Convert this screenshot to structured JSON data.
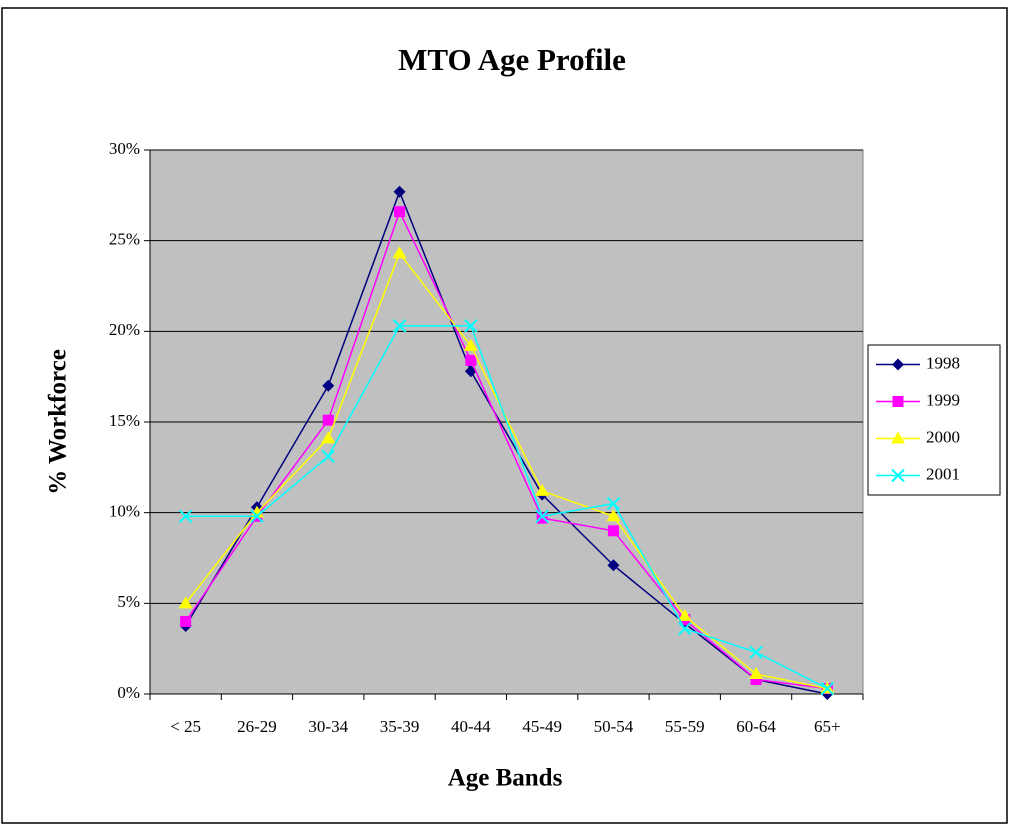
{
  "chart_data": {
    "type": "line",
    "title": "MTO Age Profile",
    "x_label": "Age Bands",
    "y_label": "% Workforce",
    "categories": [
      "< 25",
      "26-29",
      "30-34",
      "35-39",
      "40-44",
      "45-49",
      "50-54",
      "55-59",
      "60-64",
      "65+"
    ],
    "series": [
      {
        "name": "1998",
        "color": "#000080",
        "marker": "diamond",
        "values": [
          3.75,
          10.3,
          17.0,
          27.7,
          17.8,
          11.0,
          7.1,
          3.9,
          0.8,
          0
        ]
      },
      {
        "name": "1999",
        "color": "#ff00ff",
        "marker": "square",
        "values": [
          4.0,
          9.8,
          15.1,
          26.6,
          18.4,
          9.7,
          9.0,
          4.1,
          0.8,
          0.3
        ]
      },
      {
        "name": "2000",
        "color": "#ffff00",
        "marker": "triangle",
        "values": [
          5.0,
          10.0,
          14.1,
          24.3,
          19.2,
          11.2,
          9.8,
          4.3,
          1.1,
          0.3
        ]
      },
      {
        "name": "2001",
        "color": "#00ffff",
        "marker": "x",
        "values": [
          9.8,
          9.8,
          13.1,
          20.3,
          20.3,
          9.8,
          10.5,
          3.6,
          2.3,
          0.3
        ]
      }
    ],
    "ylim": [
      0,
      30
    ],
    "yticks": [
      {
        "value": 0,
        "label": "0%"
      },
      {
        "value": 5,
        "label": "5%"
      },
      {
        "value": 10,
        "label": "10%"
      },
      {
        "value": 15,
        "label": "15%"
      },
      {
        "value": 20,
        "label": "20%"
      },
      {
        "value": 25,
        "label": "25%"
      },
      {
        "value": 30,
        "label": "30%"
      }
    ],
    "grid": true,
    "legend": "right",
    "plot_background": "#c0c0c0"
  }
}
